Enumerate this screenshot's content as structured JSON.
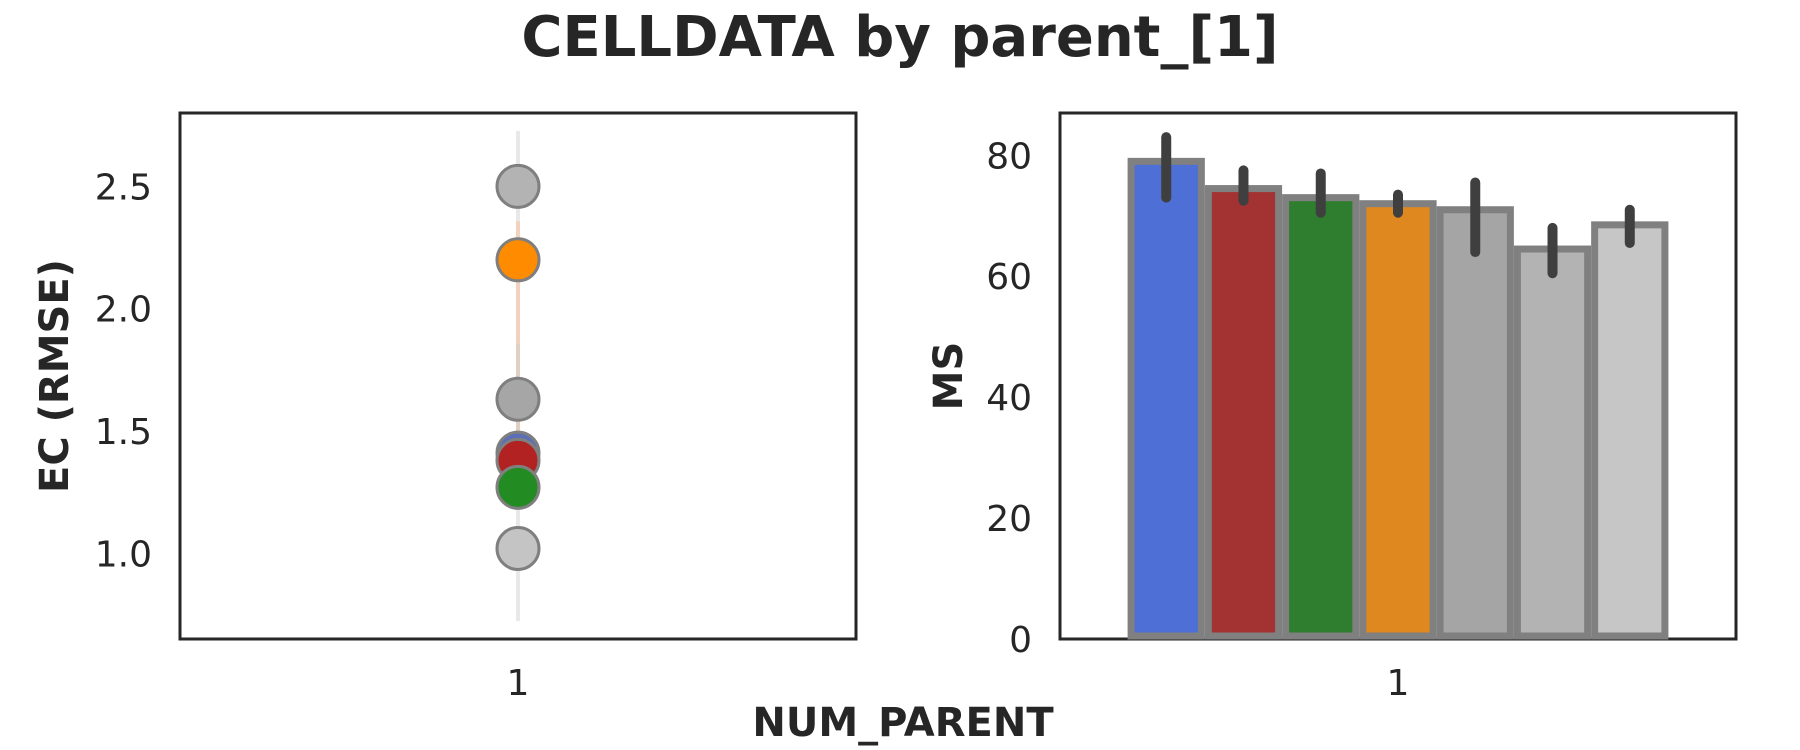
{
  "title": "CELLDATA  by parent_[1]",
  "shared_xlabel": "NUM_PARENT",
  "chart_data": [
    {
      "type": "scatter",
      "ylabel": "EC (RMSE)",
      "categories": [
        "1"
      ],
      "ylim": [
        0.65,
        2.8
      ],
      "yticks": [
        1.0,
        1.5,
        2.0,
        2.5
      ],
      "ytick_labels": [
        "1.0",
        "1.5",
        "2.0",
        "2.5"
      ],
      "grid": false,
      "points": [
        {
          "x": "1",
          "y": 2.5,
          "color": "#b3b3b3"
        },
        {
          "x": "1",
          "y": 2.2,
          "color": "#ff8c00"
        },
        {
          "x": "1",
          "y": 1.63,
          "color": "#a6a6a6"
        },
        {
          "x": "1",
          "y": 1.41,
          "color": "#5b6fb8"
        },
        {
          "x": "1",
          "y": 1.38,
          "color": "#b22222"
        },
        {
          "x": "1",
          "y": 1.27,
          "color": "#228b22"
        },
        {
          "x": "1",
          "y": 1.02,
          "color": "#c4c4c4"
        }
      ],
      "error_bars": [
        {
          "x": "1",
          "low": 0.73,
          "high": 2.72,
          "color": "#e8e8e8"
        },
        {
          "x": "1",
          "low": 1.55,
          "high": 2.35,
          "color": "#f0d2bd"
        },
        {
          "x": "1",
          "low": 1.3,
          "high": 1.85,
          "color": "#e2cfc4"
        }
      ]
    },
    {
      "type": "bar",
      "ylabel": "MS",
      "categories": [
        "1"
      ],
      "ylim": [
        0,
        87
      ],
      "yticks": [
        0,
        20,
        40,
        60,
        80
      ],
      "ytick_labels": [
        "0",
        "20",
        "40",
        "60",
        "80"
      ],
      "grid": false,
      "edge_color": "#808080",
      "errbar_color": "#3f3f3f",
      "series": [
        {
          "value": 79,
          "err_low": 73,
          "err_high": 83,
          "color": "#4e6fd6"
        },
        {
          "value": 74.5,
          "err_low": 72.5,
          "err_high": 77.5,
          "color": "#a33232"
        },
        {
          "value": 73,
          "err_low": 70.5,
          "err_high": 77,
          "color": "#2f7d2f"
        },
        {
          "value": 72,
          "err_low": 70.5,
          "err_high": 73.5,
          "color": "#e08820"
        },
        {
          "value": 71,
          "err_low": 64,
          "err_high": 75.5,
          "color": "#a5a5a5"
        },
        {
          "value": 64.5,
          "err_low": 60.5,
          "err_high": 68,
          "color": "#b3b3b3"
        },
        {
          "value": 68.5,
          "err_low": 65.5,
          "err_high": 71,
          "color": "#c6c6c6"
        }
      ]
    }
  ]
}
